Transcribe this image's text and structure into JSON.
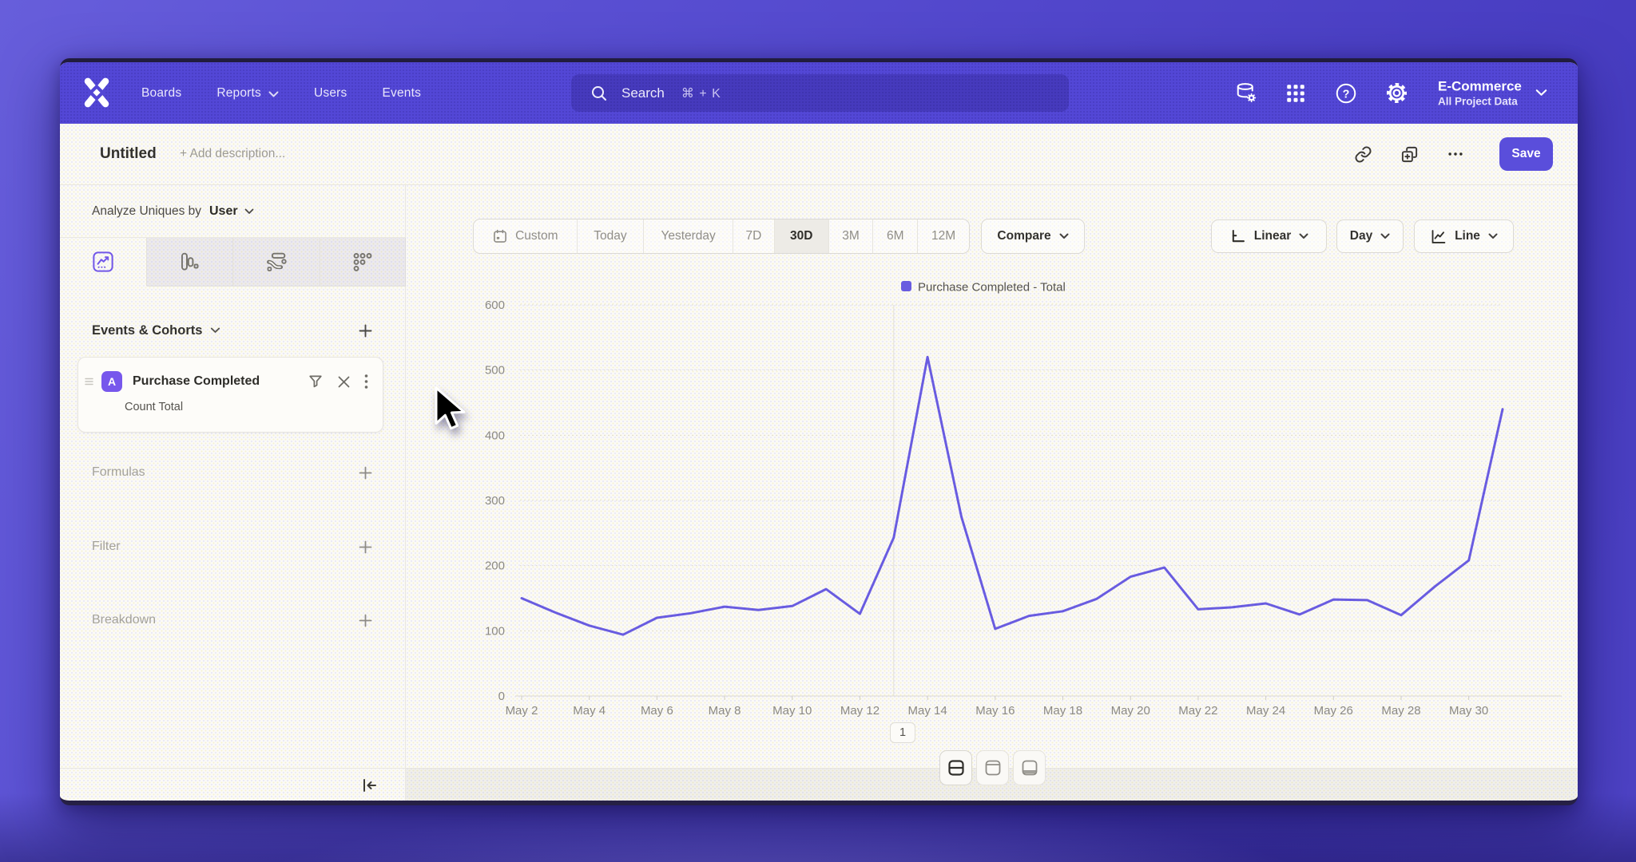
{
  "topnav": {
    "brand_icon": "mixpanel-logo",
    "items": [
      {
        "label": "Boards",
        "has_chevron": false
      },
      {
        "label": "Reports",
        "has_chevron": true
      },
      {
        "label": "Users",
        "has_chevron": false
      },
      {
        "label": "Events",
        "has_chevron": false
      }
    ],
    "search": {
      "placeholder": "Search",
      "shortcut": "⌘ + K"
    },
    "project": {
      "name": "E-Commerce",
      "subtitle": "All Project Data"
    }
  },
  "doc_header": {
    "title": "Untitled",
    "description_placeholder": "+ Add description...",
    "save_label": "Save"
  },
  "sidebar": {
    "analyze_prefix": "Analyze Uniques by",
    "analyze_value": "User",
    "tabs": [
      "insights",
      "funnels",
      "flows",
      "retention"
    ],
    "events_header": "Events & Cohorts",
    "event": {
      "badge": "A",
      "name": "Purchase Completed",
      "metric": "Count Total"
    },
    "sections": [
      {
        "label": "Formulas"
      },
      {
        "label": "Filter"
      },
      {
        "label": "Breakdown"
      }
    ]
  },
  "toolbar": {
    "ranges": [
      "Custom",
      "Today",
      "Yesterday",
      "7D",
      "30D",
      "3M",
      "6M",
      "12M"
    ],
    "selected_range": "30D",
    "compare_label": "Compare",
    "scale_label": "Linear",
    "interval_label": "Day",
    "chart_type_label": "Line"
  },
  "pagination": {
    "page": "1"
  },
  "chart_data": {
    "type": "line",
    "legend": "Purchase Completed - Total",
    "x": [
      "May 2",
      "May 3",
      "May 4",
      "May 5",
      "May 6",
      "May 7",
      "May 8",
      "May 9",
      "May 10",
      "May 11",
      "May 12",
      "May 13",
      "May 14",
      "May 15",
      "May 16",
      "May 17",
      "May 18",
      "May 19",
      "May 20",
      "May 21",
      "May 22",
      "May 23",
      "May 24",
      "May 25",
      "May 26",
      "May 27",
      "May 28",
      "May 29",
      "May 30",
      "May 31"
    ],
    "series": [
      {
        "name": "Purchase Completed - Total",
        "values": [
          150,
          128,
          108,
          94,
          120,
          127,
          137,
          132,
          138,
          164,
          126,
          243,
          520,
          275,
          103,
          123,
          130,
          149,
          183,
          197,
          133,
          136,
          142,
          125,
          148,
          147,
          124,
          168,
          208,
          440
        ]
      }
    ],
    "ylim": [
      0,
      600
    ],
    "yticks": [
      0,
      100,
      200,
      300,
      400,
      500,
      600
    ],
    "x_label_every": 2,
    "grid": true,
    "vline_index": 11,
    "legend_position": "top",
    "line_color": "#695ce0",
    "axis_label_color": "#8b8984"
  }
}
